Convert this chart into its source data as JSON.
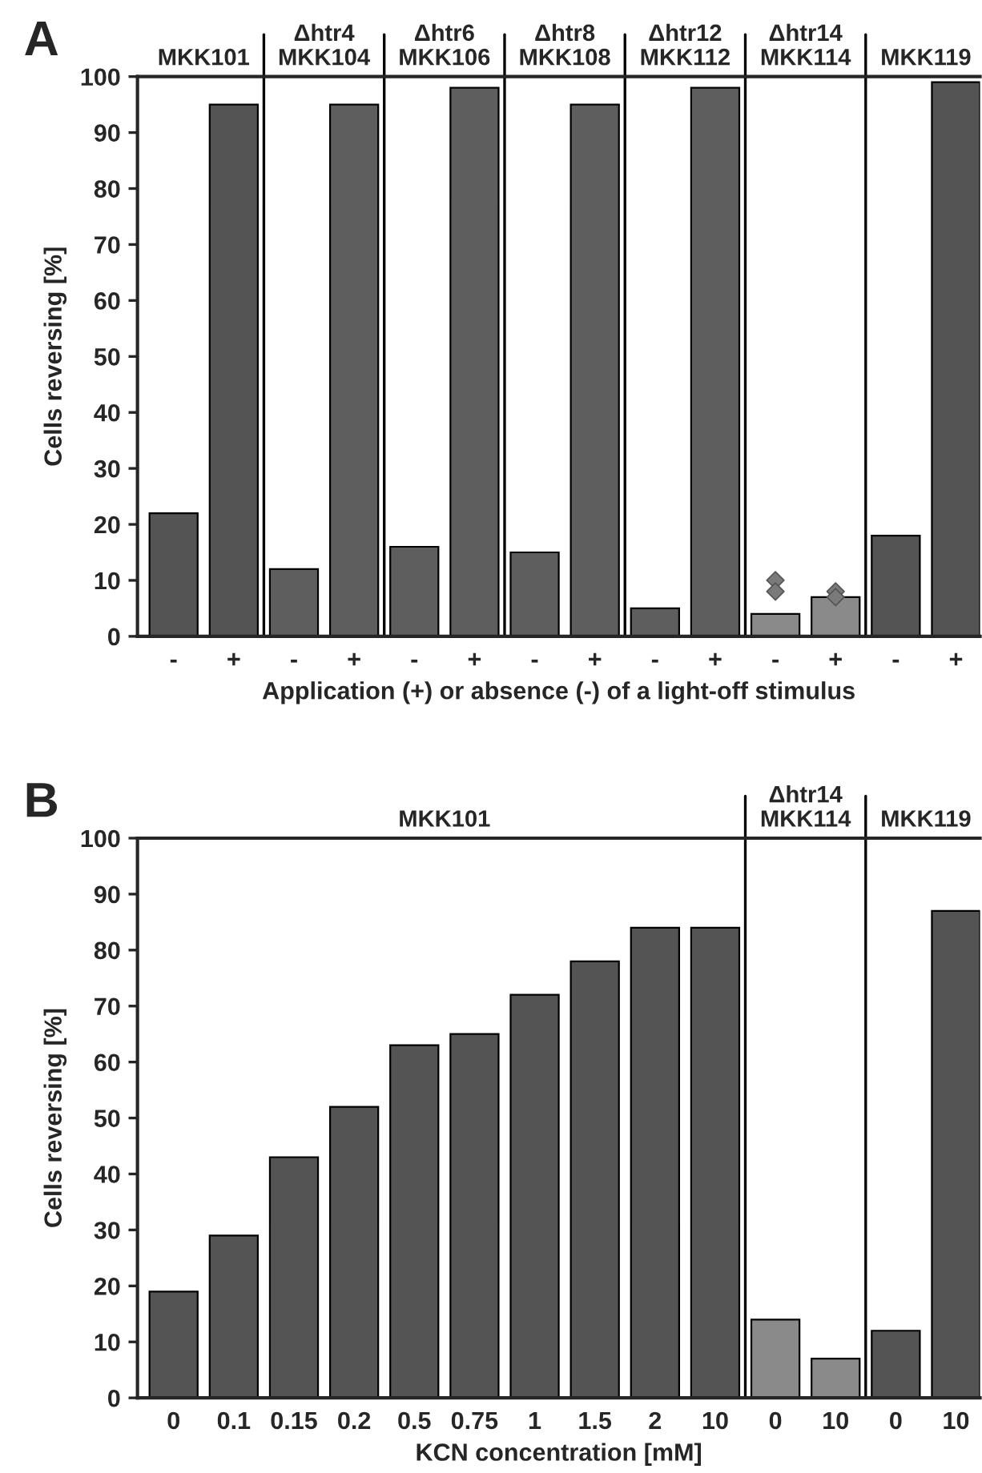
{
  "chart_data": [
    {
      "type": "bar",
      "xlabel": "Application (+) or absence (-) of a light-off stimulus",
      "ylabel": "Cells reversing [%]",
      "categories": [
        "-",
        "+",
        "-",
        "+",
        "-",
        "+",
        "-",
        "+",
        "-",
        "+",
        "-",
        "+",
        "-",
        "+"
      ],
      "series": [
        {
          "values": [
            22,
            95,
            12,
            95,
            16,
            98,
            15,
            95,
            5,
            98,
            4,
            7,
            18,
            99
          ],
          "colors": [
            "#545454",
            "#545454",
            "#5e5e5e",
            "#5e5e5e",
            "#5e5e5e",
            "#5e5e5e",
            "#5e5e5e",
            "#5e5e5e",
            "#5e5e5e",
            "#5e5e5e",
            "#8a8a8a",
            "#8a8a8a",
            "#545454",
            "#545454"
          ]
        },
        {
          "type": "scatter",
          "color": "#7a7a7a",
          "marker": "diamond",
          "values": [
            null,
            null,
            null,
            null,
            null,
            null,
            null,
            null,
            null,
            null,
            10,
            8,
            null,
            null
          ]
        },
        {
          "type": "scatter",
          "color": "#7a7a7a",
          "marker": "diamond",
          "values": [
            null,
            null,
            null,
            null,
            null,
            null,
            null,
            null,
            null,
            null,
            8,
            7,
            null,
            null
          ]
        }
      ],
      "ylim": [
        0,
        100
      ],
      "yticks": [
        0,
        10,
        20,
        30,
        40,
        50,
        60,
        70,
        80,
        90,
        100
      ],
      "grid": false,
      "legend": false,
      "annotations": [
        "A",
        "MKK101",
        "Δhtr4\nMKK104",
        "Δhtr6\nMKK106",
        "Δhtr8\nMKK108",
        "Δhtr12\nMKK112",
        "Δhtr14\nMKK114",
        "MKK119"
      ]
    },
    {
      "type": "bar",
      "xlabel": "KCN concentration [mM]",
      "ylabel": "Cells reversing [%]",
      "categories": [
        "0",
        "0.1",
        "0.15",
        "0.2",
        "0.5",
        "0.75",
        "1",
        "1.5",
        "2",
        "10",
        "0",
        "10",
        "0",
        "10"
      ],
      "series": [
        {
          "values": [
            19,
            29,
            43,
            52,
            63,
            65,
            72,
            78,
            84,
            84,
            14,
            7,
            12,
            87
          ],
          "colors": [
            "#545454",
            "#545454",
            "#545454",
            "#545454",
            "#545454",
            "#545454",
            "#545454",
            "#545454",
            "#545454",
            "#545454",
            "#8a8a8a",
            "#8a8a8a",
            "#545454",
            "#545454"
          ]
        }
      ],
      "ylim": [
        0,
        100
      ],
      "yticks": [
        0,
        10,
        20,
        30,
        40,
        50,
        60,
        70,
        80,
        90,
        100
      ],
      "grid": false,
      "legend": false,
      "annotations": [
        "B",
        "MKK101",
        "Δhtr14\nMKK114",
        "MKK119"
      ]
    }
  ]
}
